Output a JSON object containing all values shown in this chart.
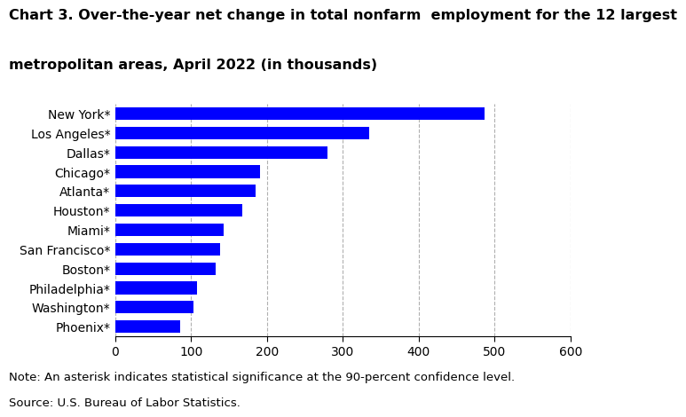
{
  "title_line1": "Chart 3. Over-the-year net change in total nonfarm  employment for the 12 largest",
  "title_line2": "metropolitan areas, April 2022 (in thousands)",
  "categories": [
    "New York*",
    "Los Angeles*",
    "Dallas*",
    "Chicago*",
    "Atlanta*",
    "Houston*",
    "Miami*",
    "San Francisco*",
    "Boston*",
    "Philadelphia*",
    "Washington*",
    "Phoenix*"
  ],
  "values": [
    487,
    335,
    280,
    191,
    185,
    168,
    143,
    138,
    132,
    108,
    103,
    85
  ],
  "bar_color": "#0000FF",
  "xlim": [
    0,
    600
  ],
  "xticks": [
    0,
    100,
    200,
    300,
    400,
    500,
    600
  ],
  "note": "Note: An asterisk indicates statistical significance at the 90-percent confidence level.",
  "source": "Source: U.S. Bureau of Labor Statistics.",
  "title_fontsize": 11.5,
  "tick_fontsize": 10,
  "note_fontsize": 9.5,
  "background_color": "#ffffff",
  "grid_color": "#b0b0b0"
}
